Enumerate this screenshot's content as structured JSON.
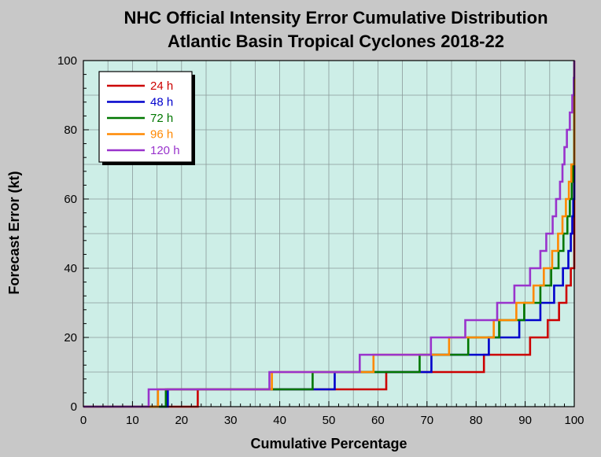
{
  "chart_data": {
    "type": "line",
    "step": true,
    "title": "NHC Official Intensity Error Cumulative Distribution",
    "subtitle": "Atlantic Basin Tropical Cyclones 2018-22",
    "xlabel": "Cumulative Percentage",
    "ylabel": "Forecast Error (kt)",
    "xlim": [
      0,
      100
    ],
    "ylim": [
      0,
      100
    ],
    "xticks": [
      0,
      10,
      20,
      30,
      40,
      50,
      60,
      70,
      80,
      90,
      100
    ],
    "yticks": [
      0,
      20,
      40,
      60,
      80,
      100
    ],
    "grid": true,
    "legend_position": "top-left",
    "plot_background": "#cdeee7",
    "series": [
      {
        "name": "24 h",
        "color": "#cc0000",
        "x": [
          0,
          23.3,
          61.7,
          81.6,
          91.0,
          94.6,
          96.9,
          98.4,
          99.3,
          100
        ],
        "y": [
          0,
          5,
          10,
          15,
          20,
          25,
          30,
          35,
          40,
          100
        ]
      },
      {
        "name": "48 h",
        "color": "#0000cc",
        "x": [
          0,
          17.2,
          51.2,
          70.9,
          82.6,
          88.8,
          93.1,
          95.9,
          97.7,
          98.8,
          99.3,
          99.6,
          99.8,
          100
        ],
        "y": [
          0,
          5,
          10,
          15,
          20,
          25,
          30,
          35,
          40,
          45,
          50,
          55,
          60,
          100
        ]
      },
      {
        "name": "72 h",
        "color": "#007700",
        "x": [
          0,
          16.8,
          46.7,
          68.5,
          78.4,
          84.7,
          89.8,
          93.1,
          95.3,
          96.8,
          97.8,
          98.6,
          99.1,
          99.5,
          99.8,
          100
        ],
        "y": [
          0,
          5,
          10,
          15,
          20,
          25,
          30,
          35,
          40,
          45,
          50,
          55,
          60,
          65,
          70,
          100
        ]
      },
      {
        "name": "96 h",
        "color": "#ff8800",
        "x": [
          0,
          15.2,
          38.4,
          59.1,
          74.5,
          83.6,
          88.2,
          91.7,
          93.8,
          95.5,
          96.7,
          97.6,
          98.3,
          98.9,
          99.4,
          100
        ],
        "y": [
          0,
          5,
          10,
          15,
          20,
          25,
          30,
          35,
          40,
          45,
          50,
          55,
          60,
          65,
          70,
          100
        ]
      },
      {
        "name": "120 h",
        "color": "#9933cc",
        "x": [
          0,
          13.3,
          37.9,
          56.3,
          70.8,
          77.8,
          84.3,
          87.8,
          91.0,
          93.1,
          94.3,
          95.6,
          96.3,
          97.1,
          97.6,
          98.0,
          98.5,
          99.1,
          99.6,
          99.9,
          100
        ],
        "y": [
          0,
          5,
          10,
          15,
          20,
          25,
          30,
          35,
          40,
          45,
          50,
          55,
          60,
          65,
          70,
          75,
          80,
          85,
          90,
          95,
          100
        ]
      }
    ]
  }
}
